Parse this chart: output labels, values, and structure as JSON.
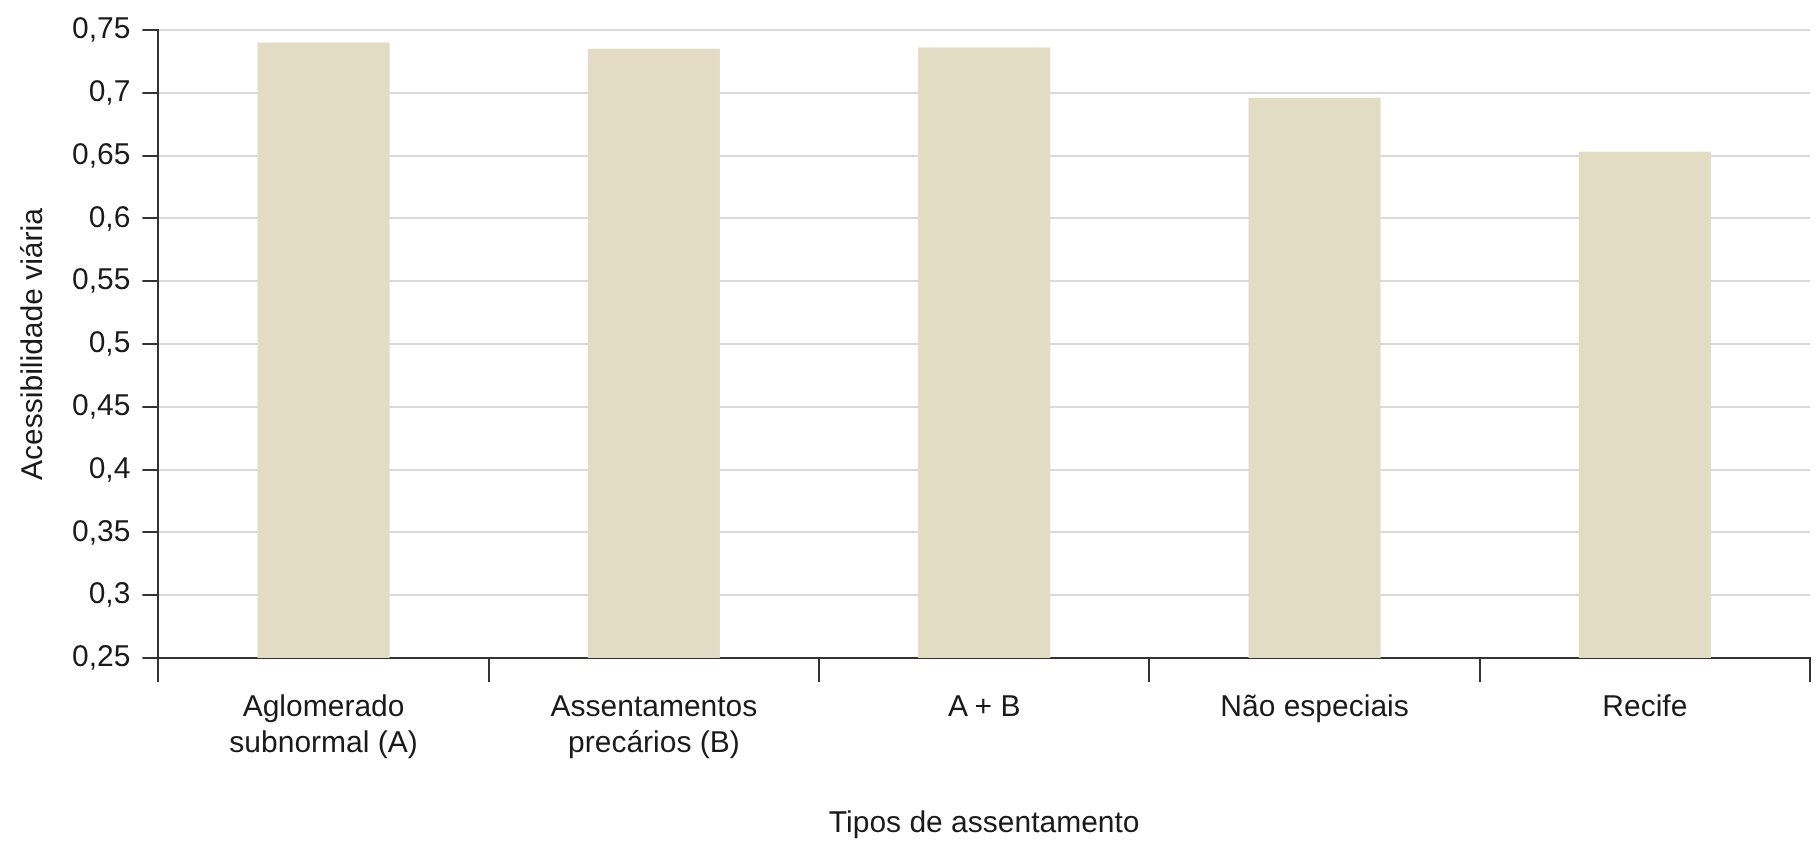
{
  "chart_data": {
    "type": "bar",
    "xlabel": "Tipos de assentamento",
    "ylabel": "Acessibilidade viária",
    "categories": [
      "Aglomerado subnormal (A)",
      "Assentamentos precários (B)",
      "A + B",
      "Não especiais",
      "Recife"
    ],
    "values": [
      0.74,
      0.735,
      0.736,
      0.696,
      0.653
    ],
    "color": "#e3dcc5",
    "ylim": [
      0.25,
      0.75
    ],
    "yticks": [
      {
        "value": 0.25,
        "label": "0,25"
      },
      {
        "value": 0.3,
        "label": "0,3"
      },
      {
        "value": 0.35,
        "label": "0,35"
      },
      {
        "value": 0.4,
        "label": "0,4"
      },
      {
        "value": 0.45,
        "label": "0,45"
      },
      {
        "value": 0.5,
        "label": "0,5"
      },
      {
        "value": 0.55,
        "label": "0,55"
      },
      {
        "value": 0.6,
        "label": "0,6"
      },
      {
        "value": 0.65,
        "label": "0,65"
      },
      {
        "value": 0.7,
        "label": "0,7"
      },
      {
        "value": 0.75,
        "label": "0,75"
      }
    ],
    "grid": "y",
    "legend": false
  }
}
